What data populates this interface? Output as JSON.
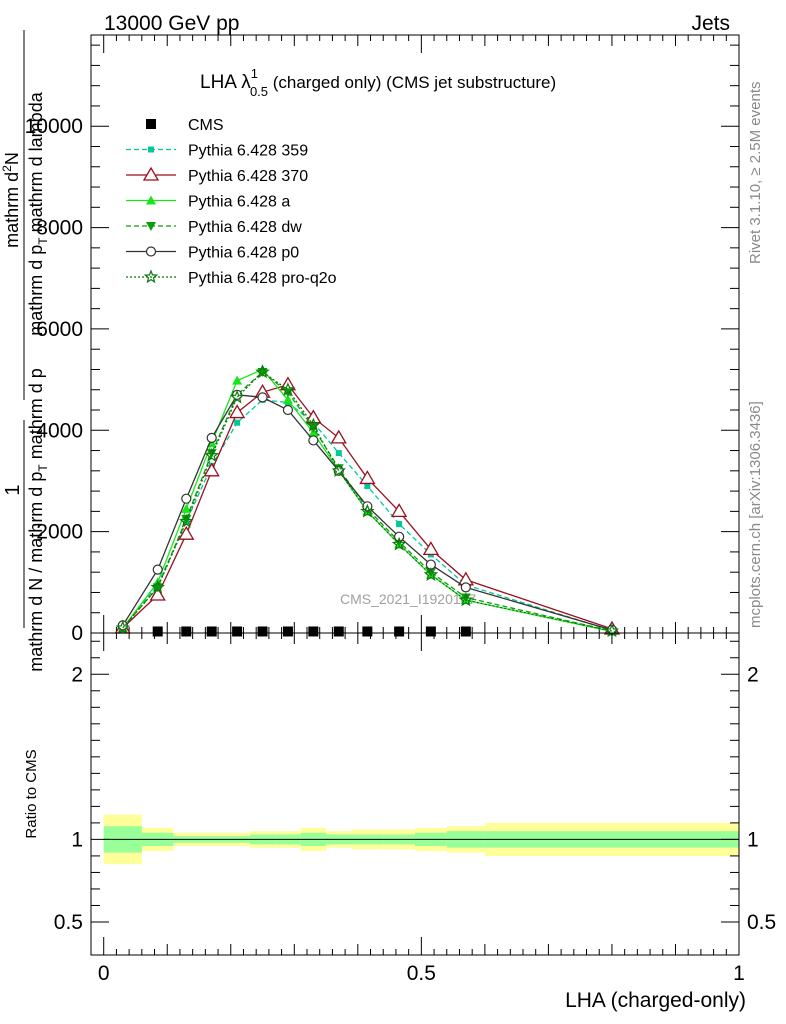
{
  "header": {
    "left": "13000 GeV pp",
    "right": "Jets"
  },
  "side_labels": {
    "rivet": "Rivet 3.1.10, ≥ 2.5M events",
    "mcplots": "mcplots.cern.ch [arXiv:1306.3436]"
  },
  "watermark": "CMS_2021_I1920187",
  "chart_data": [
    {
      "type": "line",
      "title": "LHA λ",
      "title_sup": "1",
      "title_sub": "0.5",
      "title_suffix": " (charged only) (CMS jet substructure)",
      "xlabel": "LHA (charged-only)",
      "ylabel": {
        "numerator_one": "1",
        "denominator": "mathrm d N / mathrm d p",
        "denominator_sub": "T",
        "denominator_tail": " mathrm d p",
        "numerator_main": "mathrm d",
        "numerator_sup": "2",
        "numerator_tail": "N",
        "line2": "mathrm d p",
        "line2_sub": "T",
        "line2_tail": " mathrm d lambda"
      },
      "xlim": [
        -0.02,
        1.0
      ],
      "ylim": [
        0,
        11800
      ],
      "grid": false,
      "legend_position": "top-left",
      "y_ticks": [
        0,
        2000,
        4000,
        6000,
        8000,
        10000
      ],
      "y_tick_labels": [
        "0",
        "2000",
        "4000",
        "6000",
        "8000",
        "10000"
      ],
      "x": [
        0.03,
        0.085,
        0.13,
        0.17,
        0.21,
        0.25,
        0.29,
        0.33,
        0.37,
        0.415,
        0.465,
        0.515,
        0.57,
        0.8
      ],
      "series": [
        {
          "name": "CMS",
          "color": "#000000",
          "marker": "square",
          "line": "none",
          "x": [
            0.085,
            0.13,
            0.17,
            0.21,
            0.25,
            0.29,
            0.33,
            0.37,
            0.415,
            0.465,
            0.515,
            0.57
          ],
          "values": [
            30,
            30,
            30,
            30,
            30,
            30,
            30,
            30,
            30,
            30,
            30,
            30
          ]
        },
        {
          "name": "Pythia 6.428 359",
          "color": "#00c896",
          "marker": "small-square",
          "line": "dashed",
          "values": [
            100,
            950,
            2200,
            3300,
            4150,
            4600,
            4550,
            4150,
            3550,
            2900,
            2150,
            1550,
            950,
            50
          ]
        },
        {
          "name": "Pythia 6.428 370",
          "color": "#9b0f1f",
          "marker": "open-triangle",
          "line": "solid",
          "values": [
            100,
            750,
            1950,
            3200,
            4350,
            4750,
            4900,
            4250,
            3850,
            3050,
            2400,
            1650,
            1050,
            80
          ]
        },
        {
          "name": "Pythia 6.428 a",
          "color": "#19e619",
          "marker": "triangle",
          "line": "solid",
          "values": [
            100,
            1000,
            2450,
            3750,
            4980,
            5200,
            4600,
            3950,
            3200,
            2400,
            1750,
            1150,
            650,
            30
          ]
        },
        {
          "name": "Pythia 6.428 dw",
          "color": "#0a9f0a",
          "marker": "triangle-down",
          "line": "dashed",
          "values": [
            100,
            900,
            2250,
            3550,
            4700,
            5150,
            4750,
            4050,
            3250,
            2450,
            1800,
            1200,
            700,
            40
          ]
        },
        {
          "name": "Pythia 6.428 p0",
          "color": "#333333",
          "marker": "open-circle",
          "line": "solid",
          "values": [
            150,
            1250,
            2650,
            3850,
            4700,
            4650,
            4400,
            3800,
            3200,
            2500,
            1900,
            1350,
            900,
            60
          ]
        },
        {
          "name": "Pythia 6.428 pro-q2o",
          "color": "#0a7a0a",
          "marker": "star",
          "line": "dotted",
          "values": [
            100,
            900,
            2200,
            3500,
            4650,
            5150,
            4800,
            4100,
            3200,
            2400,
            1750,
            1150,
            650,
            40
          ]
        }
      ]
    },
    {
      "type": "area",
      "ylabel": "Ratio to CMS",
      "xlim": [
        -0.02,
        1.0
      ],
      "ylim": [
        0.3,
        2.25
      ],
      "y_ticks": [
        0.5,
        1,
        2
      ],
      "y_tick_labels": [
        "0.5",
        "1",
        "2"
      ],
      "x_ticks": [
        0,
        0.5,
        1
      ],
      "x_tick_labels": [
        "0",
        "0.5",
        "1"
      ],
      "reference_line": 1,
      "bin_edges": [
        0,
        0.06,
        0.11,
        0.15,
        0.19,
        0.23,
        0.27,
        0.31,
        0.35,
        0.39,
        0.44,
        0.49,
        0.54,
        0.6,
        1.0
      ],
      "band_outer": {
        "color": "#ffff99",
        "low": [
          0.85,
          0.93,
          0.96,
          0.96,
          0.96,
          0.95,
          0.95,
          0.93,
          0.95,
          0.94,
          0.94,
          0.93,
          0.92,
          0.9
        ],
        "high": [
          1.15,
          1.07,
          1.04,
          1.04,
          1.04,
          1.05,
          1.05,
          1.07,
          1.05,
          1.06,
          1.06,
          1.07,
          1.08,
          1.1
        ]
      },
      "band_inner": {
        "color": "#99ff99",
        "low": [
          0.92,
          0.96,
          0.98,
          0.98,
          0.98,
          0.97,
          0.97,
          0.96,
          0.97,
          0.97,
          0.97,
          0.96,
          0.95,
          0.95
        ],
        "high": [
          1.08,
          1.04,
          1.02,
          1.02,
          1.02,
          1.03,
          1.03,
          1.04,
          1.03,
          1.03,
          1.03,
          1.04,
          1.05,
          1.05
        ]
      }
    }
  ]
}
